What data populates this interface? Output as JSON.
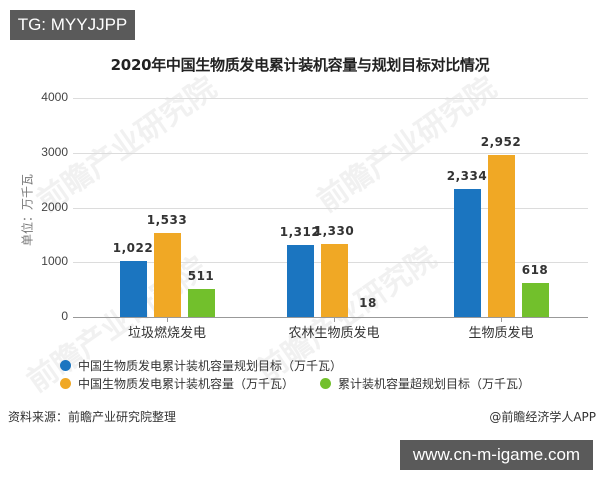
{
  "badges": {
    "top": "TG: MYYJJPP",
    "bottom": "www.cn-m-igame.com"
  },
  "chart_data": {
    "type": "bar",
    "title": "2020年中国生物质发电累计装机容量与规划目标对比情况",
    "xlabel": "",
    "ylabel": "单位：万千瓦",
    "ylim": [
      0,
      4000
    ],
    "yticks": [
      "0",
      "1000",
      "2000",
      "3000",
      "4000"
    ],
    "grid": true,
    "legend_position": "bottom",
    "categories": [
      "垃圾燃烧发电",
      "农林生物质发电",
      "生物质发电"
    ],
    "series": [
      {
        "name": "中国生物质发电累计装机容量规划目标（万千瓦）",
        "color": "#1b75c0",
        "values": [
          1022,
          1312,
          2334
        ],
        "labels": [
          "1,022",
          "1,312",
          "2,334"
        ]
      },
      {
        "name": "中国生物质发电累计装机容量（万千瓦）",
        "color": "#f0a825",
        "values": [
          1533,
          1330,
          2952
        ],
        "labels": [
          "1,533",
          "1,330",
          "2,952"
        ]
      },
      {
        "name": "累计装机容量超规划目标（万千瓦）",
        "color": "#72c02c",
        "values": [
          511,
          18,
          618
        ],
        "labels": [
          "511",
          "18",
          "618"
        ]
      }
    ]
  },
  "footer": {
    "source": "资料来源：前瞻产业研究院整理",
    "credit": "@前瞻经济学人APP"
  },
  "watermark": "前瞻产业研究院"
}
